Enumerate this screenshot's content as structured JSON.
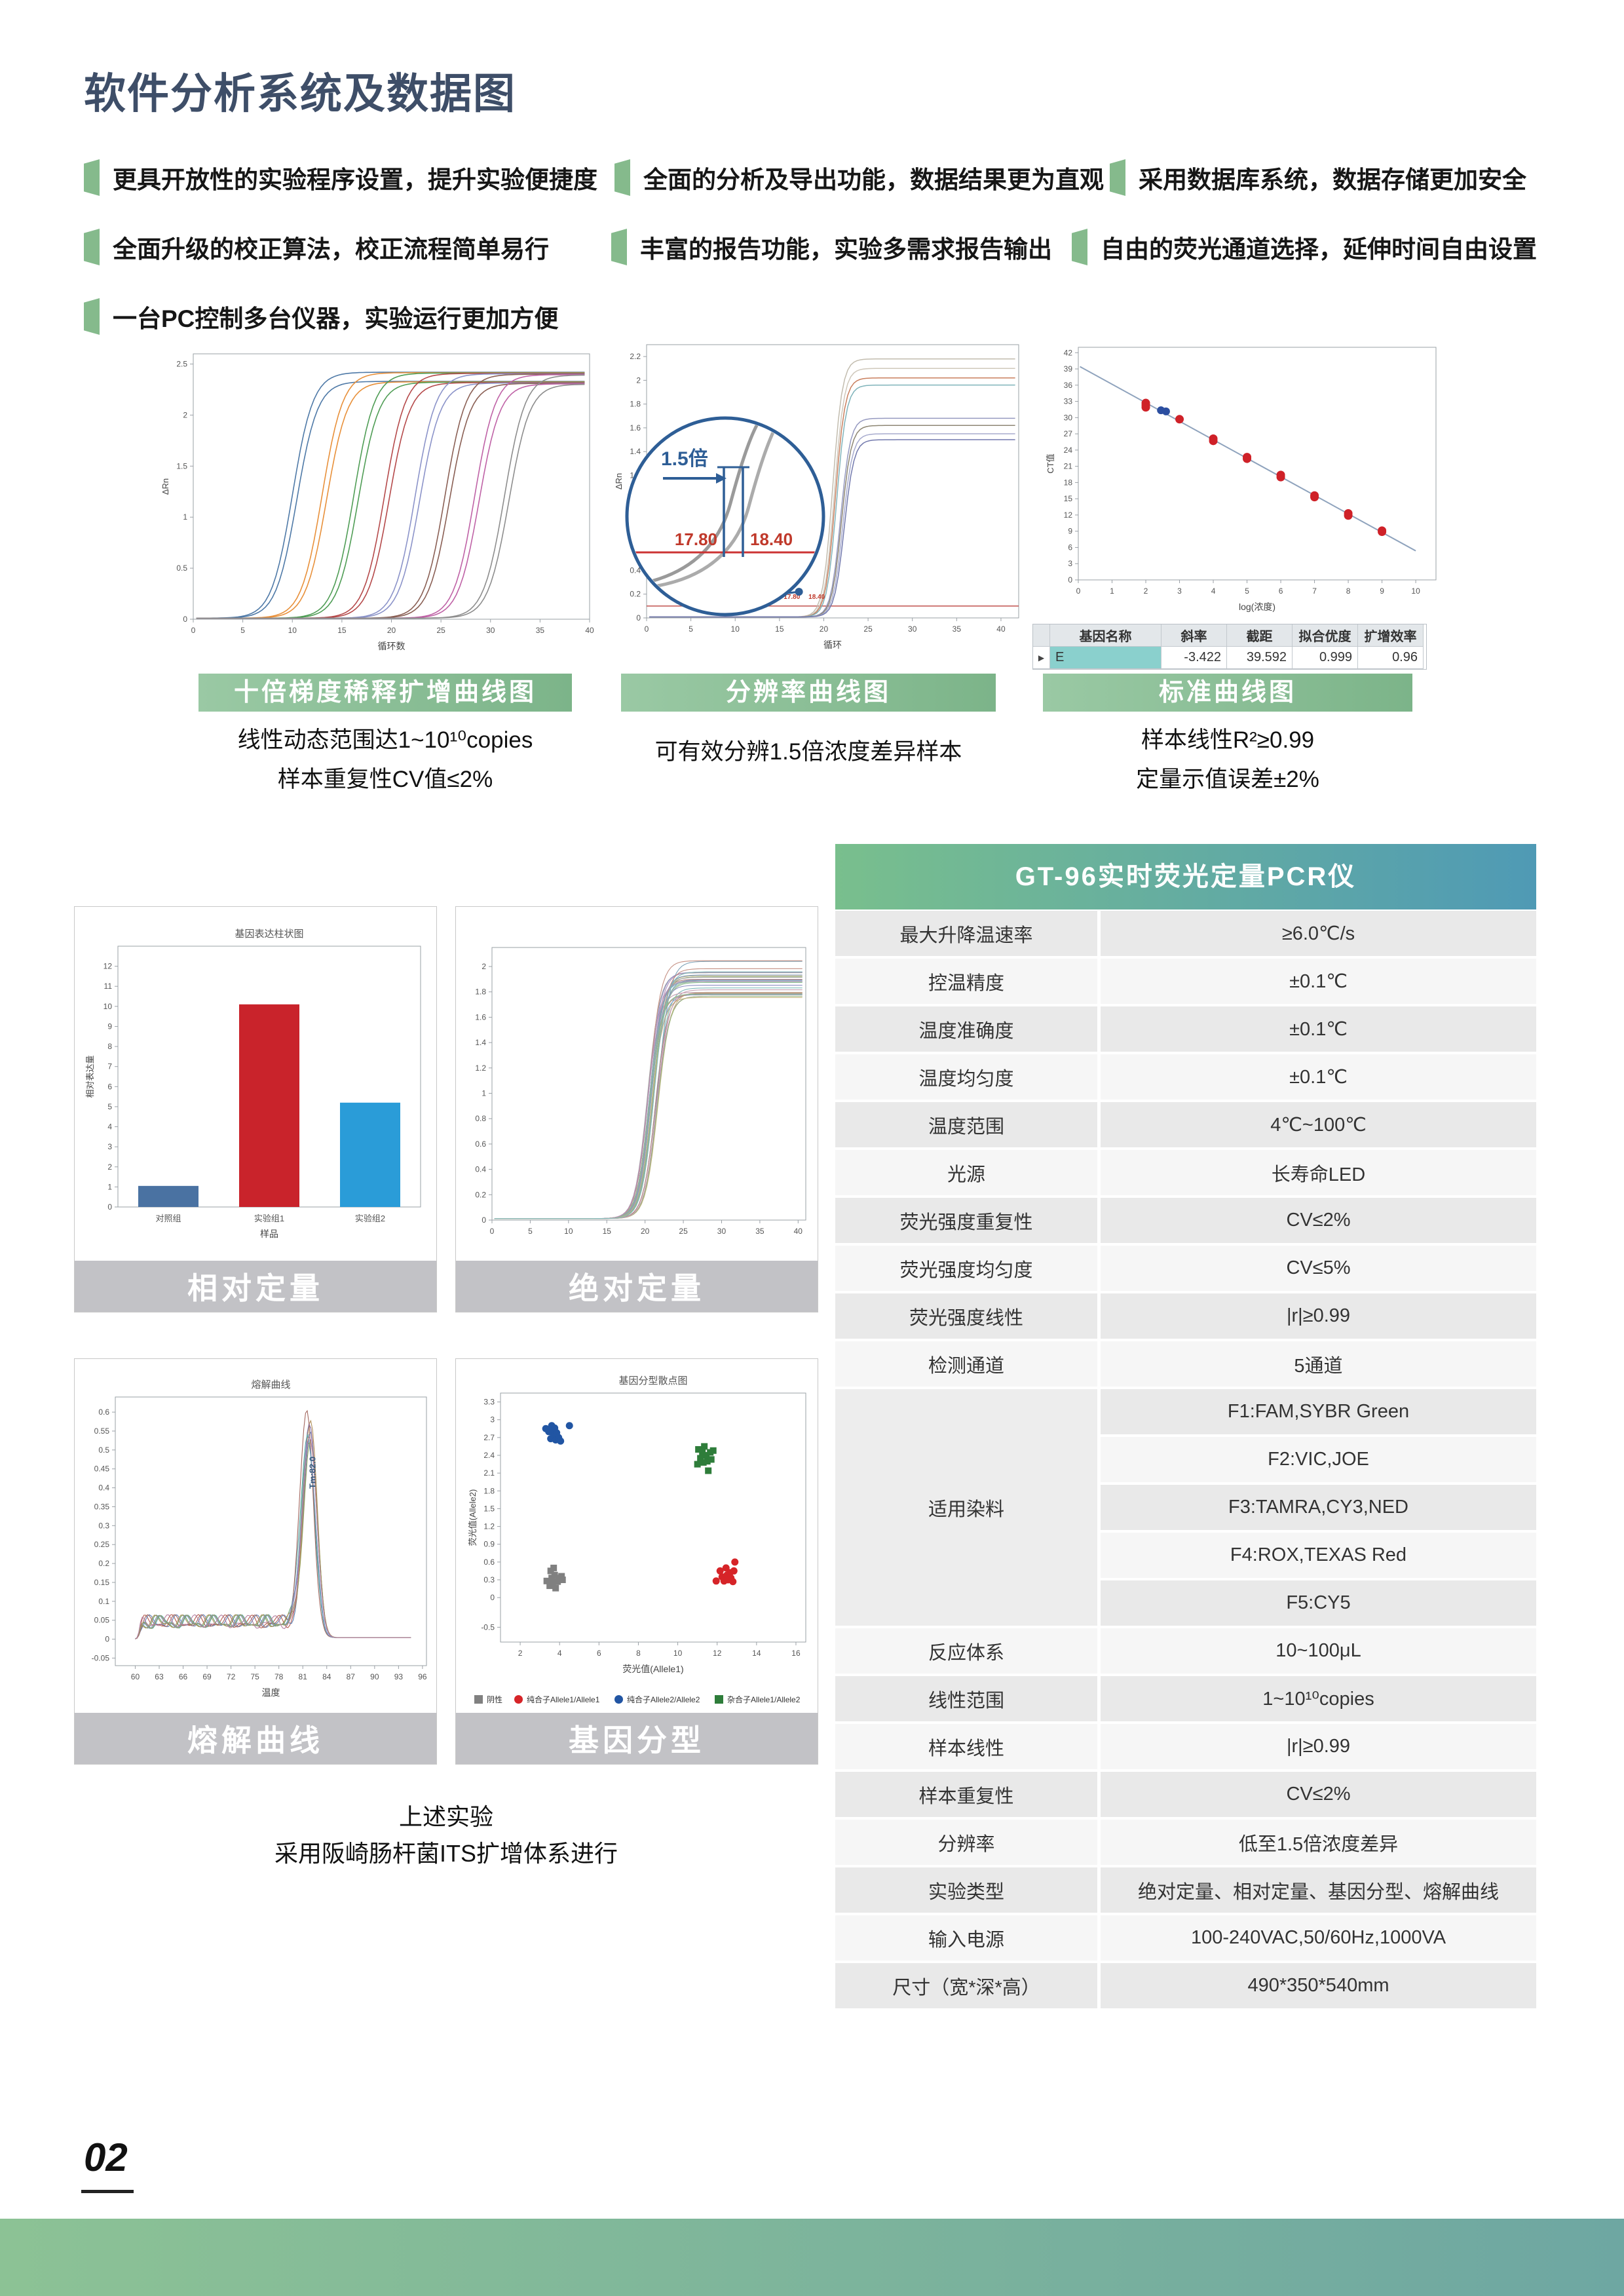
{
  "page": {
    "title": "软件分析系统及数据图",
    "page_number": "02"
  },
  "features": [
    "更具开放性的实验程序设置，提升实验便捷度",
    "全面的分析及导出功能，数据结果更为直观",
    "采用数据库系统，数据存储更加安全",
    "全面升级的校正算法，校正流程简单易行",
    "丰富的报告功能，实验多需求报告输出",
    "自由的荧光通道选择，延伸时间自由设置",
    "一台PC控制多台仪器，实验运行更加方便"
  ],
  "top_charts": [
    {
      "banner": "十倍梯度稀释扩增曲线图",
      "caption_lines": [
        "线性动态范围达1~10¹⁰copies",
        "样本重复性CV值≤2%"
      ]
    },
    {
      "banner": "分辨率曲线图",
      "caption_lines": [
        "可有效分辨1.5倍浓度差异样本"
      ]
    },
    {
      "banner": "标准曲线图",
      "caption_lines": [
        "样本线性R²≥0.99",
        "定量示值误差±2%"
      ]
    }
  ],
  "panel_labels": [
    "相对定量",
    "绝对定量",
    "熔解曲线",
    "基因分型"
  ],
  "note_lines": [
    "上述实验",
    "采用阪崎肠杆菌ITS扩增体系进行"
  ],
  "spec_table": {
    "title": "GT-96实时荧光定量PCR仪",
    "rows_before_dye": [
      [
        "最大升降温速率",
        "≥6.0℃/s"
      ],
      [
        "控温精度",
        "±0.1℃"
      ],
      [
        "温度准确度",
        "±0.1℃"
      ],
      [
        "温度均匀度",
        "±0.1℃"
      ],
      [
        "温度范围",
        "4℃~100℃"
      ],
      [
        "光源",
        "长寿命LED"
      ],
      [
        "荧光强度重复性",
        "CV≤2%"
      ],
      [
        "荧光强度均匀度",
        "CV≤5%"
      ],
      [
        "荧光强度线性",
        "|r|≥0.99"
      ],
      [
        "检测通道",
        "5通道"
      ]
    ],
    "dye_group": {
      "label": "适用染料",
      "values": [
        "F1:FAM,SYBR Green",
        "F2:VIC,JOE",
        "F3:TAMRA,CY3,NED",
        "F4:ROX,TEXAS Red",
        "F5:CY5"
      ]
    },
    "rows_after_dye": [
      [
        "反应体系",
        "10~100μL"
      ],
      [
        "线性范围",
        "1~10¹⁰copies"
      ],
      [
        "样本线性",
        "|r|≥0.99"
      ],
      [
        "样本重复性",
        "CV≤2%"
      ],
      [
        "分辨率",
        "低至1.5倍浓度差异"
      ],
      [
        "实验类型",
        "绝对定量、相对定量、基因分型、熔解曲线"
      ],
      [
        "输入电源",
        "100-240VAC,50/60Hz,1000VA"
      ],
      [
        "尺寸（宽*深*高）",
        "490*350*540mm"
      ]
    ]
  },
  "chart_data": [
    {
      "id": "tenfold_amplification",
      "type": "line",
      "title": "",
      "xlabel": "循环数",
      "ylabel": "ΔRn",
      "x_range": [
        0,
        40
      ],
      "y_range": [
        0,
        2.6
      ],
      "x_tick": {
        "min": 0,
        "max": 40,
        "step": 5
      },
      "y_tick": {
        "min": 0,
        "max": 2.5,
        "step": 0.5
      },
      "groups": {
        "midpoints": [
          10,
          13,
          16.2,
          19.3,
          22.4,
          25.4,
          28.4,
          31.4
        ],
        "colors": [
          "#4e79a7",
          "#e8903a",
          "#4f9d55",
          "#b5494a",
          "#8b93c9",
          "#8a5f54",
          "#bf62a6",
          "#8d8d8d"
        ],
        "replicates": 2,
        "replicate_offset": 0.45,
        "plateaus": [
          2.42,
          2.33
        ],
        "base": 0.01,
        "k": 1.05
      },
      "description": "8 ten-fold dilution groups, duplicate curves per group"
    },
    {
      "id": "resolution",
      "type": "line",
      "title": "",
      "xlabel": "循环",
      "ylabel": "ΔRn",
      "x_range": [
        0,
        42
      ],
      "y_range": [
        0,
        2.3
      ],
      "x_tick": {
        "min": 0,
        "max": 40,
        "step": 5
      },
      "y_tick": {
        "min": 0,
        "max": 2.2,
        "step": 0.2
      },
      "threshold": 0.1,
      "bundles": [
        [
          {
            "color": "#c2bcae",
            "m": 21.0,
            "p": 2.18
          },
          {
            "color": "#cfc8bb",
            "m": 21.2,
            "p": 2.1
          },
          {
            "color": "#c97f5e",
            "m": 21.3,
            "p": 2.02
          },
          {
            "color": "#7fb3ba",
            "m": 21.45,
            "p": 1.96
          }
        ],
        [
          {
            "color": "#9599c0",
            "m": 21.9,
            "p": 1.68
          },
          {
            "color": "#8d8673",
            "m": 22.0,
            "p": 1.62
          },
          {
            "color": "#a7abce",
            "m": 22.15,
            "p": 1.55
          },
          {
            "color": "#7279ad",
            "m": 22.3,
            "p": 1.5
          }
        ]
      ],
      "k": 0.55,
      "base": 0.008,
      "annotations": {
        "fold": "1.5倍",
        "ct1": "17.80",
        "ct2": "18.40"
      }
    },
    {
      "id": "standard_curve",
      "type": "scatter",
      "title": "",
      "xlabel": "log(浓度)",
      "ylabel": "CT值",
      "x_range": [
        0,
        10.6
      ],
      "y_range": [
        0,
        43
      ],
      "x_tick": {
        "min": 0,
        "max": 10,
        "step": 1
      },
      "y_tick": {
        "min": 0,
        "max": 42,
        "step": 3
      },
      "fit": {
        "slope": -3.422,
        "intercept": 39.592
      },
      "points_red": [
        [
          2,
          32.7
        ],
        [
          2,
          32.3
        ],
        [
          2,
          31.9
        ],
        [
          3,
          29.7
        ],
        [
          4,
          26.1
        ],
        [
          4,
          25.7
        ],
        [
          5,
          22.7
        ],
        [
          5,
          22.4
        ],
        [
          6,
          19.4
        ],
        [
          6,
          19.0
        ],
        [
          7,
          15.6
        ],
        [
          7,
          15.3
        ],
        [
          8,
          12.3
        ],
        [
          8,
          11.9
        ],
        [
          9,
          9.1
        ],
        [
          9,
          8.9
        ]
      ],
      "points_blue": [
        [
          2.45,
          31.35
        ],
        [
          2.6,
          31.15
        ]
      ],
      "result_table": {
        "headers": [
          "基因名称",
          "斜率",
          "截距",
          "拟合优度",
          "扩增效率"
        ],
        "row": [
          "E",
          "-3.422",
          "39.592",
          "0.999",
          "0.96"
        ],
        "row_marker": "▶"
      }
    },
    {
      "id": "relative_quant_bar",
      "type": "bar",
      "title": "基因表达柱状图",
      "xlabel": "样品",
      "ylabel": "相对表达量",
      "categories": [
        "对照组",
        "实验组1",
        "实验组2"
      ],
      "values": [
        1.05,
        10.1,
        5.2
      ],
      "colors": [
        "#4a72a2",
        "#c9232b",
        "#2a9cd8"
      ],
      "ylim": [
        0,
        13
      ],
      "y_tick": {
        "min": 0,
        "max": 12,
        "step": 1
      }
    },
    {
      "id": "absolute_quant",
      "type": "line",
      "title": "",
      "xlabel": "",
      "ylabel": "",
      "x_range": [
        0,
        41
      ],
      "y_range": [
        0,
        2.15
      ],
      "x_tick": {
        "min": 0,
        "max": 40,
        "step": 5
      },
      "y_tick": {
        "min": 0,
        "max": 2,
        "step": 0.2
      },
      "bundle": {
        "count": 30,
        "mid_min": 20.2,
        "mid_spread": 1.5,
        "plateau_min": 1.74,
        "plateau_spread": 0.32,
        "k": 0.8,
        "base": 0.012,
        "palette": [
          "#7f9ec4",
          "#c48f82",
          "#8fb98f",
          "#b28fb6",
          "#c4b37f",
          "#7fb9b9",
          "#a3a3a3",
          "#b87f7f",
          "#8f8fc4",
          "#9cb87f",
          "#c49fb2",
          "#7fa3b8"
        ]
      }
    },
    {
      "id": "melting_curve",
      "type": "line",
      "title": "熔解曲线",
      "xlabel": "温度",
      "ylabel": "",
      "x_range": [
        57.5,
        96.5
      ],
      "y_range": [
        -0.07,
        0.64
      ],
      "x_tick": {
        "min": 60,
        "max": 96,
        "step": 3
      },
      "y_tick": {
        "min": -0.05,
        "max": 0.6,
        "step": 0.05
      },
      "peak": {
        "count": 10,
        "center": 81.7,
        "center_jitter": 0.3,
        "amp": 0.48,
        "amp_jitter": 0.07,
        "sigma": 0.85,
        "baseline": 0.045,
        "annotation": "Tm:82.0",
        "palette": [
          "#b55b4d",
          "#5b7fb5",
          "#64a06a",
          "#b08f5a",
          "#8a7fb5",
          "#5aa5a8",
          "#a3675f",
          "#7d96c2",
          "#9aa05e",
          "#b57fa0"
        ]
      }
    },
    {
      "id": "genotyping",
      "type": "scatter",
      "title": "基因分型散点图",
      "xlabel": "荧光值(Allele1)",
      "ylabel": "荧光值(Allele2)",
      "x_range": [
        1,
        16.5
      ],
      "y_range": [
        -0.75,
        3.45
      ],
      "x_tick": {
        "min": 2,
        "max": 16,
        "step": 2
      },
      "y_ticks": [
        -0.5,
        0,
        0.3,
        0.6,
        0.9,
        1.2,
        1.5,
        1.8,
        2.1,
        2.4,
        2.7,
        3,
        3.3
      ],
      "clusters": [
        {
          "label": "阴性",
          "marker": "square",
          "color": "#808080",
          "points": [
            [
              3.35,
              0.28
            ],
            [
              3.5,
              0.2
            ],
            [
              3.55,
              0.45
            ],
            [
              3.6,
              0.33
            ],
            [
              3.65,
              0.24
            ],
            [
              3.7,
              0.5
            ],
            [
              3.75,
              0.38
            ],
            [
              3.8,
              0.16
            ],
            [
              3.9,
              0.27
            ],
            [
              3.95,
              0.33
            ],
            [
              4.1,
              0.36
            ],
            [
              4.15,
              0.3
            ]
          ]
        },
        {
          "label": "纯合子Allele1/Allele1",
          "marker": "circle",
          "color": "#d62428",
          "points": [
            [
              11.95,
              0.28
            ],
            [
              12.15,
              0.45
            ],
            [
              12.25,
              0.35
            ],
            [
              12.35,
              0.28
            ],
            [
              12.45,
              0.5
            ],
            [
              12.5,
              0.38
            ],
            [
              12.55,
              0.3
            ],
            [
              12.65,
              0.42
            ],
            [
              12.7,
              0.33
            ],
            [
              12.8,
              0.27
            ],
            [
              12.85,
              0.45
            ],
            [
              12.9,
              0.6
            ]
          ]
        },
        {
          "label": "纯合子Allele2/Allele2",
          "marker": "circle",
          "color": "#2155a3",
          "points": [
            [
              3.3,
              2.85
            ],
            [
              3.45,
              2.8
            ],
            [
              3.55,
              2.68
            ],
            [
              3.6,
              2.9
            ],
            [
              3.65,
              2.78
            ],
            [
              3.7,
              2.72
            ],
            [
              3.75,
              2.86
            ],
            [
              3.8,
              2.66
            ],
            [
              3.85,
              2.78
            ],
            [
              3.95,
              2.7
            ],
            [
              4.05,
              2.64
            ],
            [
              4.5,
              2.9
            ]
          ]
        },
        {
          "label": "杂合子Allele1/Allele2",
          "marker": "square",
          "color": "#2e7d3a",
          "points": [
            [
              11.0,
              2.25
            ],
            [
              11.05,
              2.5
            ],
            [
              11.15,
              2.35
            ],
            [
              11.25,
              2.45
            ],
            [
              11.3,
              2.28
            ],
            [
              11.35,
              2.55
            ],
            [
              11.45,
              2.4
            ],
            [
              11.5,
              2.3
            ],
            [
              11.55,
              2.14
            ],
            [
              11.65,
              2.45
            ],
            [
              11.7,
              2.33
            ],
            [
              11.8,
              2.48
            ]
          ]
        }
      ]
    }
  ],
  "colors": {
    "title": "#3e4e68",
    "bullet_marker": "#85ba8c",
    "banner_green": "#8bc096",
    "panel_bar_gray": "#c2c2c6",
    "spec_header_left": "#79bf8d",
    "spec_header_right": "#4f9ab5",
    "footer_left": "#8cc295",
    "footer_right": "#6ea7a2",
    "highlight_cell": "#8ad0cd"
  }
}
